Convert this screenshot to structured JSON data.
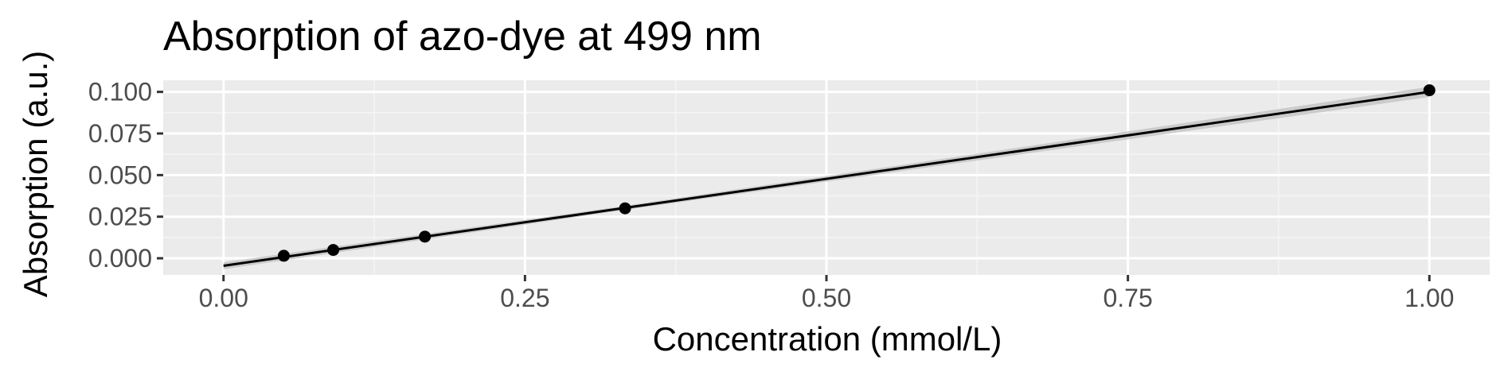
{
  "chart_data": {
    "type": "scatter",
    "title": "Absorption of azo-dye at 499 nm",
    "xlabel": "Concentration (mmol/L)",
    "ylabel": "Absorption (a.u.)",
    "xlim": [
      -0.05,
      1.05
    ],
    "ylim": [
      -0.01,
      0.107
    ],
    "x_ticks": [
      0.0,
      0.25,
      0.5,
      0.75,
      1.0
    ],
    "x_tick_labels": [
      "0.00",
      "0.25",
      "0.50",
      "0.75",
      "1.00"
    ],
    "y_ticks": [
      0.0,
      0.025,
      0.05,
      0.075,
      0.1
    ],
    "y_tick_labels": [
      "0.000",
      "0.025",
      "0.050",
      "0.075",
      "0.100"
    ],
    "grid": true,
    "series": [
      {
        "x": [
          0.05,
          0.091,
          0.167,
          0.333,
          1.0
        ],
        "y": [
          0.0015,
          0.005,
          0.013,
          0.03,
          0.101
        ]
      }
    ],
    "fit_line": {
      "type": "linear",
      "x": [
        0.0,
        1.0
      ],
      "y": [
        -0.0045,
        0.1
      ],
      "confidence_band": true
    },
    "colors": {
      "panel_background": "#ebebeb",
      "grid_major": "#ffffff",
      "grid_minor": "#f5f5f5",
      "point": "#000000",
      "line": "#000000",
      "band": "#c8c8c8"
    }
  }
}
